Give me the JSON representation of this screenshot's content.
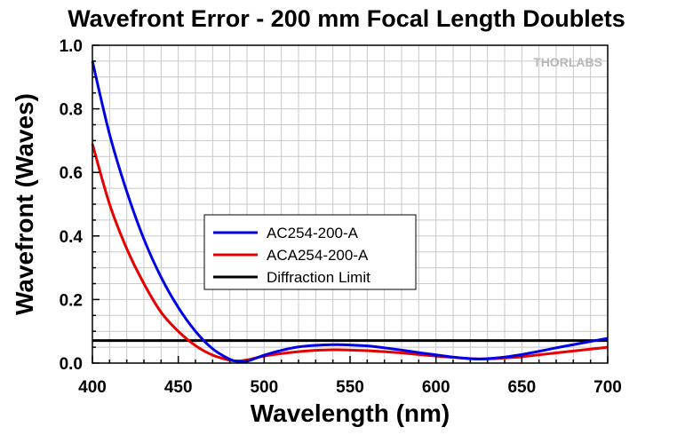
{
  "chart_data": {
    "type": "line",
    "title": "Wavefront Error - 200 mm Focal Length Doublets",
    "xlabel": "Wavelength (nm)",
    "ylabel": "Wavefront (Waves)",
    "xlim": [
      400,
      700
    ],
    "ylim": [
      0.0,
      1.0
    ],
    "x_ticks": [
      400,
      450,
      500,
      550,
      600,
      650,
      700
    ],
    "y_ticks": [
      0.0,
      0.2,
      0.4,
      0.6,
      0.8,
      1.0
    ],
    "x_tick_labels": [
      "400",
      "450",
      "500",
      "550",
      "600",
      "650",
      "700"
    ],
    "y_tick_labels": [
      "0.0",
      "0.2",
      "0.4",
      "0.6",
      "0.8",
      "1.0"
    ],
    "grid": true,
    "legend_position": "center",
    "watermark": "THORLABS",
    "series": [
      {
        "name": "AC254-200-A",
        "color": "#0000e6",
        "x": [
          400,
          410,
          420,
          430,
          440,
          450,
          460,
          470,
          480,
          485,
          490,
          495,
          500,
          510,
          520,
          530,
          540,
          550,
          560,
          570,
          580,
          590,
          600,
          610,
          620,
          625,
          630,
          640,
          650,
          660,
          670,
          680,
          690,
          700
        ],
        "y": [
          0.95,
          0.72,
          0.54,
          0.39,
          0.27,
          0.175,
          0.1,
          0.045,
          0.012,
          0.005,
          0.006,
          0.015,
          0.025,
          0.04,
          0.051,
          0.056,
          0.058,
          0.057,
          0.054,
          0.048,
          0.041,
          0.033,
          0.026,
          0.019,
          0.014,
          0.013,
          0.014,
          0.019,
          0.027,
          0.037,
          0.048,
          0.058,
          0.068,
          0.078
        ]
      },
      {
        "name": "ACA254-200-A",
        "color": "#e60000",
        "x": [
          400,
          410,
          420,
          430,
          440,
          450,
          460,
          470,
          480,
          485,
          490,
          495,
          500,
          510,
          520,
          530,
          540,
          550,
          560,
          570,
          580,
          590,
          600,
          610,
          620,
          625,
          630,
          640,
          650,
          660,
          670,
          680,
          690,
          700
        ],
        "y": [
          0.69,
          0.5,
          0.36,
          0.25,
          0.16,
          0.1,
          0.055,
          0.025,
          0.009,
          0.007,
          0.01,
          0.016,
          0.022,
          0.03,
          0.036,
          0.04,
          0.042,
          0.041,
          0.039,
          0.036,
          0.032,
          0.027,
          0.022,
          0.018,
          0.014,
          0.013,
          0.013,
          0.016,
          0.02,
          0.026,
          0.032,
          0.038,
          0.044,
          0.05
        ]
      },
      {
        "name": "Diffraction Limit",
        "color": "#000000",
        "x": [
          400,
          700
        ],
        "y": [
          0.071,
          0.071
        ]
      }
    ]
  }
}
